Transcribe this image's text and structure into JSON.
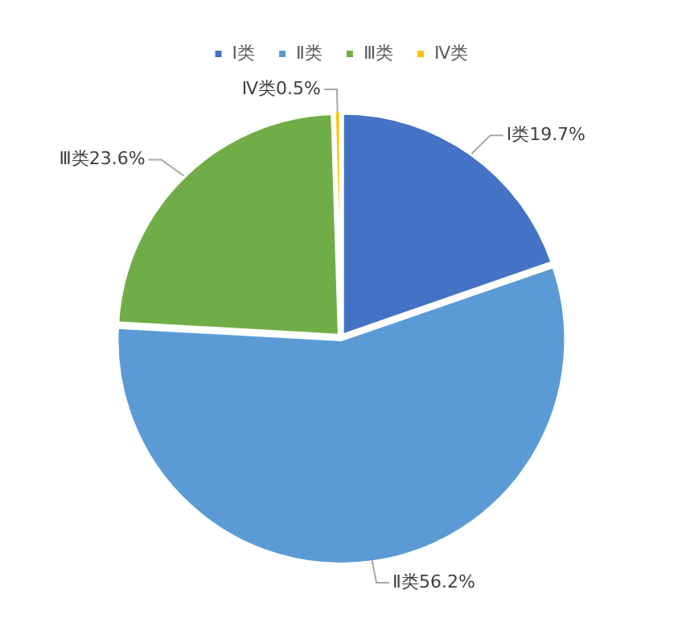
{
  "chart_data": {
    "type": "pie",
    "categories": [
      "Ⅰ类",
      "Ⅱ类",
      "Ⅲ类",
      "Ⅳ类"
    ],
    "values": [
      19.7,
      56.2,
      23.6,
      0.5
    ],
    "colors": [
      "#4472c4",
      "#5b9bd5",
      "#70ad47",
      "#ffc000"
    ],
    "value_labels": [
      "Ⅰ类19.7%",
      "Ⅱ类56.2%",
      "Ⅲ类23.6%",
      "Ⅳ类0.5%"
    ],
    "legend": "top"
  }
}
